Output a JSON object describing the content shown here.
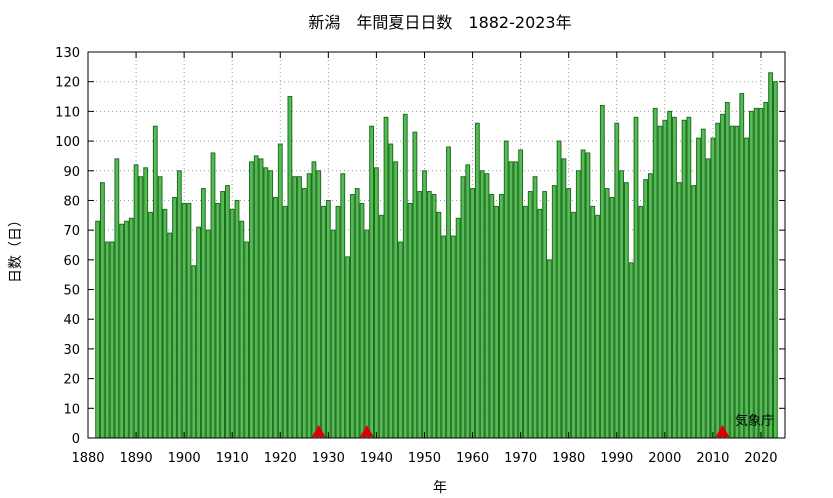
{
  "chart_data": {
    "type": "bar",
    "title": "新潟　年間夏日日数　1882-2023年",
    "xlabel": "年",
    "ylabel": "日数（日）",
    "annotation": "気象庁",
    "xlim": [
      1880,
      2025
    ],
    "ylim": [
      0,
      130
    ],
    "xticks": [
      1880,
      1890,
      1900,
      1910,
      1920,
      1930,
      1940,
      1950,
      1960,
      1970,
      1980,
      1990,
      2000,
      2010,
      2020
    ],
    "yticks": [
      0,
      10,
      20,
      30,
      40,
      50,
      60,
      70,
      80,
      90,
      100,
      110,
      120,
      130
    ],
    "grid": true,
    "start_year": 1882,
    "values": [
      73,
      86,
      66,
      66,
      94,
      72,
      73,
      74,
      92,
      88,
      91,
      76,
      105,
      88,
      77,
      69,
      81,
      90,
      79,
      79,
      58,
      71,
      84,
      70,
      96,
      79,
      83,
      85,
      77,
      80,
      73,
      66,
      93,
      95,
      94,
      91,
      90,
      81,
      99,
      78,
      115,
      88,
      88,
      84,
      89,
      93,
      90,
      78,
      80,
      70,
      78,
      89,
      61,
      82,
      84,
      79,
      70,
      105,
      91,
      75,
      108,
      99,
      93,
      66,
      109,
      79,
      103,
      83,
      90,
      83,
      82,
      76,
      68,
      98,
      68,
      74,
      88,
      92,
      84,
      106,
      90,
      89,
      82,
      78,
      82,
      100,
      93,
      93,
      97,
      78,
      83,
      88,
      77,
      83,
      60,
      85,
      100,
      94,
      84,
      76,
      90,
      97,
      96,
      78,
      75,
      112,
      84,
      81,
      106,
      90,
      86,
      59,
      108,
      78,
      87,
      89,
      111,
      105,
      107,
      110,
      108,
      86,
      107,
      108,
      85,
      101,
      104,
      94,
      101,
      106,
      109,
      113,
      105,
      105,
      116,
      101,
      110,
      111,
      111,
      113,
      123,
      120
    ],
    "markers_years": [
      1928,
      1938,
      2012
    ],
    "colors": {
      "bar_fill": "#55bb55",
      "bar_stroke": "#1f6e1f",
      "marker": "#dd0000"
    }
  }
}
